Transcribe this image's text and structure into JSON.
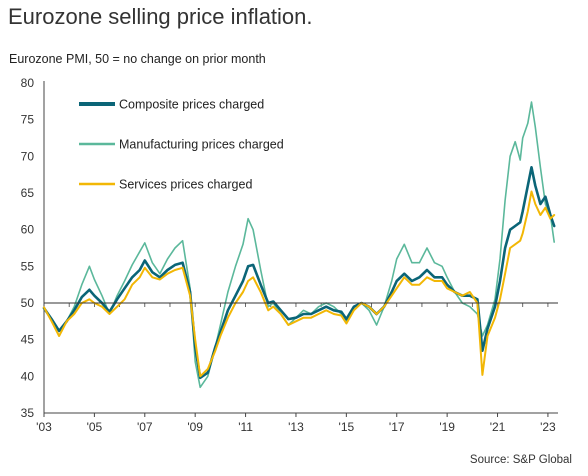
{
  "title": "Eurozone selling price inflation.",
  "subtitle": "Eurozone PMI, 50 = no change on prior month",
  "source": "Source: S&P Global",
  "chart_data": {
    "type": "line",
    "ylim": [
      35,
      80
    ],
    "yticks": [
      35,
      40,
      45,
      50,
      55,
      60,
      65,
      70,
      75,
      80
    ],
    "xlim": [
      2003.0,
      2023.4
    ],
    "xtick_values": [
      2003,
      2005,
      2007,
      2009,
      2011,
      2013,
      2015,
      2017,
      2019,
      2021,
      2023
    ],
    "xtick_labels": [
      "'03",
      "'05",
      "'07",
      "'09",
      "'11",
      "'13",
      "'15",
      "'17",
      "'19",
      "'21",
      "'23"
    ],
    "reference_line": 50,
    "legend_position": "top-left",
    "series": [
      {
        "name": "Manufacturing prices charged",
        "color": "#5bb89b",
        "width": 1.6,
        "points": [
          [
            2003.0,
            49.2
          ],
          [
            2003.3,
            47.8
          ],
          [
            2003.6,
            46.3
          ],
          [
            2003.9,
            47.5
          ],
          [
            2004.2,
            49.5
          ],
          [
            2004.5,
            52.5
          ],
          [
            2004.8,
            55.0
          ],
          [
            2005.0,
            53.2
          ],
          [
            2005.3,
            51.0
          ],
          [
            2005.6,
            48.5
          ],
          [
            2005.9,
            51.0
          ],
          [
            2006.2,
            53.0
          ],
          [
            2006.5,
            55.2
          ],
          [
            2006.8,
            57.0
          ],
          [
            2007.0,
            58.2
          ],
          [
            2007.3,
            55.5
          ],
          [
            2007.6,
            54.0
          ],
          [
            2007.9,
            56.0
          ],
          [
            2008.2,
            57.5
          ],
          [
            2008.5,
            58.5
          ],
          [
            2008.8,
            52.0
          ],
          [
            2009.0,
            42.0
          ],
          [
            2009.2,
            38.5
          ],
          [
            2009.5,
            40.0
          ],
          [
            2009.8,
            44.0
          ],
          [
            2010.0,
            47.0
          ],
          [
            2010.3,
            51.5
          ],
          [
            2010.6,
            55.0
          ],
          [
            2010.9,
            58.0
          ],
          [
            2011.1,
            61.5
          ],
          [
            2011.3,
            60.0
          ],
          [
            2011.6,
            54.5
          ],
          [
            2011.9,
            49.5
          ],
          [
            2012.1,
            50.0
          ],
          [
            2012.4,
            48.5
          ],
          [
            2012.7,
            47.0
          ],
          [
            2013.0,
            48.0
          ],
          [
            2013.3,
            49.0
          ],
          [
            2013.6,
            48.5
          ],
          [
            2013.9,
            49.5
          ],
          [
            2014.2,
            50.0
          ],
          [
            2014.5,
            49.5
          ],
          [
            2014.8,
            48.5
          ],
          [
            2015.0,
            47.5
          ],
          [
            2015.3,
            49.5
          ],
          [
            2015.6,
            50.0
          ],
          [
            2015.9,
            49.0
          ],
          [
            2016.2,
            47.0
          ],
          [
            2016.5,
            49.5
          ],
          [
            2016.8,
            53.0
          ],
          [
            2017.0,
            56.0
          ],
          [
            2017.3,
            58.0
          ],
          [
            2017.6,
            55.5
          ],
          [
            2017.9,
            55.5
          ],
          [
            2018.2,
            57.5
          ],
          [
            2018.5,
            55.5
          ],
          [
            2018.8,
            55.0
          ],
          [
            2019.0,
            53.5
          ],
          [
            2019.3,
            51.5
          ],
          [
            2019.6,
            50.0
          ],
          [
            2019.9,
            49.5
          ],
          [
            2020.2,
            48.5
          ],
          [
            2020.4,
            45.5
          ],
          [
            2020.6,
            47.0
          ],
          [
            2020.9,
            50.5
          ],
          [
            2021.1,
            56.0
          ],
          [
            2021.3,
            64.0
          ],
          [
            2021.5,
            70.0
          ],
          [
            2021.7,
            72.0
          ],
          [
            2021.9,
            69.5
          ],
          [
            2022.0,
            72.5
          ],
          [
            2022.2,
            74.5
          ],
          [
            2022.35,
            77.4
          ],
          [
            2022.5,
            74.0
          ],
          [
            2022.7,
            68.5
          ],
          [
            2022.9,
            63.5
          ],
          [
            2023.1,
            62.0
          ],
          [
            2023.25,
            58.3
          ]
        ]
      },
      {
        "name": "Composite prices charged",
        "color": "#0b6577",
        "width": 2.6,
        "points": [
          [
            2003.0,
            49.3
          ],
          [
            2003.3,
            47.8
          ],
          [
            2003.6,
            46.2
          ],
          [
            2003.9,
            47.5
          ],
          [
            2004.2,
            49.0
          ],
          [
            2004.5,
            50.8
          ],
          [
            2004.8,
            51.8
          ],
          [
            2005.0,
            51.0
          ],
          [
            2005.3,
            50.0
          ],
          [
            2005.6,
            48.8
          ],
          [
            2005.9,
            50.5
          ],
          [
            2006.2,
            52.0
          ],
          [
            2006.5,
            53.5
          ],
          [
            2006.8,
            54.5
          ],
          [
            2007.0,
            55.8
          ],
          [
            2007.3,
            54.2
          ],
          [
            2007.6,
            53.5
          ],
          [
            2007.9,
            54.5
          ],
          [
            2008.2,
            55.2
          ],
          [
            2008.5,
            55.5
          ],
          [
            2008.8,
            51.5
          ],
          [
            2009.0,
            44.0
          ],
          [
            2009.2,
            39.8
          ],
          [
            2009.5,
            40.5
          ],
          [
            2009.8,
            44.0
          ],
          [
            2010.0,
            46.0
          ],
          [
            2010.3,
            49.0
          ],
          [
            2010.6,
            51.0
          ],
          [
            2010.9,
            53.0
          ],
          [
            2011.1,
            55.0
          ],
          [
            2011.3,
            55.2
          ],
          [
            2011.6,
            52.5
          ],
          [
            2011.9,
            50.0
          ],
          [
            2012.1,
            50.2
          ],
          [
            2012.4,
            49.0
          ],
          [
            2012.7,
            47.8
          ],
          [
            2013.0,
            48.0
          ],
          [
            2013.3,
            48.5
          ],
          [
            2013.6,
            48.5
          ],
          [
            2013.9,
            49.0
          ],
          [
            2014.2,
            49.5
          ],
          [
            2014.5,
            49.0
          ],
          [
            2014.8,
            48.8
          ],
          [
            2015.0,
            47.8
          ],
          [
            2015.3,
            49.5
          ],
          [
            2015.6,
            50.0
          ],
          [
            2015.9,
            49.5
          ],
          [
            2016.2,
            48.5
          ],
          [
            2016.5,
            49.5
          ],
          [
            2016.8,
            51.5
          ],
          [
            2017.0,
            53.0
          ],
          [
            2017.3,
            54.0
          ],
          [
            2017.6,
            53.0
          ],
          [
            2017.9,
            53.5
          ],
          [
            2018.2,
            54.5
          ],
          [
            2018.5,
            53.5
          ],
          [
            2018.8,
            53.5
          ],
          [
            2019.0,
            52.5
          ],
          [
            2019.3,
            51.5
          ],
          [
            2019.6,
            51.0
          ],
          [
            2019.9,
            51.0
          ],
          [
            2020.2,
            50.5
          ],
          [
            2020.4,
            43.5
          ],
          [
            2020.6,
            46.5
          ],
          [
            2020.9,
            49.5
          ],
          [
            2021.1,
            53.0
          ],
          [
            2021.3,
            57.5
          ],
          [
            2021.5,
            60.0
          ],
          [
            2021.7,
            60.5
          ],
          [
            2021.9,
            61.0
          ],
          [
            2022.0,
            62.5
          ],
          [
            2022.2,
            66.0
          ],
          [
            2022.35,
            68.5
          ],
          [
            2022.5,
            66.0
          ],
          [
            2022.7,
            63.5
          ],
          [
            2022.9,
            64.5
          ],
          [
            2023.1,
            62.0
          ],
          [
            2023.25,
            60.5
          ]
        ]
      },
      {
        "name": "Services prices charged",
        "color": "#f2b705",
        "width": 2.0,
        "points": [
          [
            2003.0,
            49.4
          ],
          [
            2003.3,
            47.5
          ],
          [
            2003.6,
            45.5
          ],
          [
            2003.9,
            47.5
          ],
          [
            2004.2,
            48.5
          ],
          [
            2004.5,
            50.0
          ],
          [
            2004.8,
            50.5
          ],
          [
            2005.0,
            50.0
          ],
          [
            2005.3,
            49.5
          ],
          [
            2005.6,
            48.5
          ],
          [
            2005.9,
            49.5
          ],
          [
            2006.2,
            50.5
          ],
          [
            2006.5,
            52.5
          ],
          [
            2006.8,
            53.5
          ],
          [
            2007.0,
            54.8
          ],
          [
            2007.3,
            53.5
          ],
          [
            2007.6,
            53.2
          ],
          [
            2007.9,
            54.0
          ],
          [
            2008.2,
            54.5
          ],
          [
            2008.5,
            54.8
          ],
          [
            2008.8,
            51.0
          ],
          [
            2009.0,
            45.0
          ],
          [
            2009.2,
            40.0
          ],
          [
            2009.5,
            41.0
          ],
          [
            2009.8,
            43.5
          ],
          [
            2010.0,
            45.5
          ],
          [
            2010.3,
            48.0
          ],
          [
            2010.6,
            50.0
          ],
          [
            2010.9,
            51.5
          ],
          [
            2011.1,
            53.0
          ],
          [
            2011.3,
            53.5
          ],
          [
            2011.6,
            51.5
          ],
          [
            2011.9,
            49.0
          ],
          [
            2012.1,
            49.5
          ],
          [
            2012.4,
            48.5
          ],
          [
            2012.7,
            47.0
          ],
          [
            2013.0,
            47.5
          ],
          [
            2013.3,
            48.0
          ],
          [
            2013.6,
            48.0
          ],
          [
            2013.9,
            48.5
          ],
          [
            2014.2,
            49.0
          ],
          [
            2014.5,
            48.5
          ],
          [
            2014.8,
            48.3
          ],
          [
            2015.0,
            47.2
          ],
          [
            2015.3,
            49.0
          ],
          [
            2015.6,
            50.0
          ],
          [
            2015.9,
            49.5
          ],
          [
            2016.2,
            48.5
          ],
          [
            2016.5,
            49.5
          ],
          [
            2016.8,
            51.0
          ],
          [
            2017.0,
            52.0
          ],
          [
            2017.3,
            53.5
          ],
          [
            2017.6,
            52.5
          ],
          [
            2017.9,
            52.5
          ],
          [
            2018.2,
            53.5
          ],
          [
            2018.5,
            53.0
          ],
          [
            2018.8,
            53.0
          ],
          [
            2019.0,
            52.0
          ],
          [
            2019.3,
            51.5
          ],
          [
            2019.6,
            51.0
          ],
          [
            2019.9,
            51.5
          ],
          [
            2020.2,
            50.0
          ],
          [
            2020.4,
            40.2
          ],
          [
            2020.6,
            45.5
          ],
          [
            2020.9,
            48.0
          ],
          [
            2021.1,
            50.5
          ],
          [
            2021.3,
            54.0
          ],
          [
            2021.5,
            57.5
          ],
          [
            2021.7,
            58.0
          ],
          [
            2021.9,
            58.5
          ],
          [
            2022.0,
            59.5
          ],
          [
            2022.2,
            62.5
          ],
          [
            2022.35,
            65.2
          ],
          [
            2022.5,
            63.5
          ],
          [
            2022.7,
            62.0
          ],
          [
            2022.9,
            63.0
          ],
          [
            2023.1,
            61.5
          ],
          [
            2023.25,
            62.0
          ]
        ]
      }
    ],
    "legend_order": [
      1,
      0,
      2
    ]
  }
}
